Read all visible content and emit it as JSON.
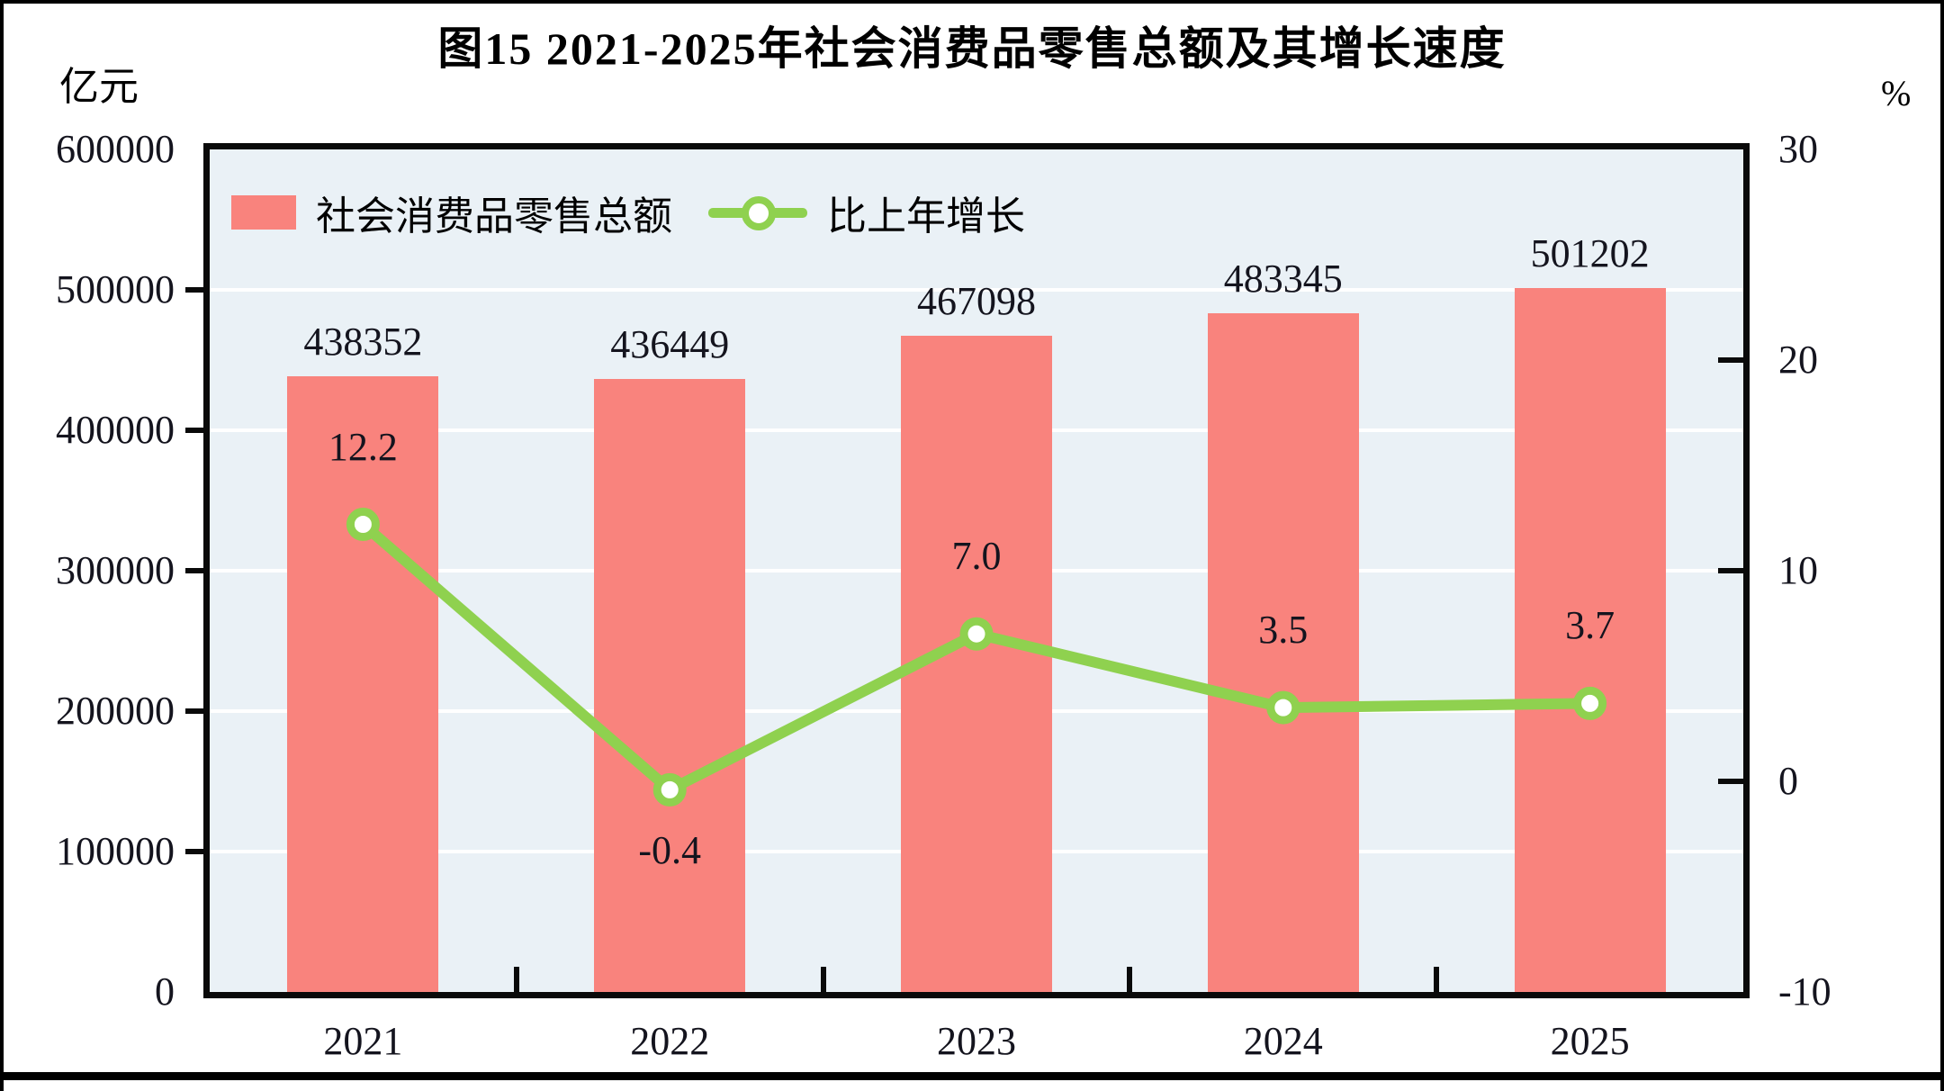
{
  "figure": {
    "title": "图15  2021-2025年社会消费品零售总额及其增长速度",
    "left_axis_unit": "亿元",
    "right_axis_unit": "%"
  },
  "legend": {
    "bar_label": "社会消费品零售总额",
    "line_label": "比上年增长"
  },
  "colors": {
    "bar": "#F9837D",
    "line": "#8FD14F",
    "marker_fill": "#FFFFFF",
    "plot_bg": "#EAF1F6",
    "gridline": "#FFFFFF",
    "axis": "#0A0A0A",
    "text": "#14141E"
  },
  "chart_data": {
    "type": "bar",
    "subtype": "bar+line combo, dual y-axis",
    "title": "图15  2021-2025年社会消费品零售总额及其增长速度",
    "categories": [
      "2021",
      "2022",
      "2023",
      "2024",
      "2025"
    ],
    "series": [
      {
        "name": "社会消费品零售总额",
        "type": "bar",
        "axis": "left",
        "unit": "亿元",
        "values": [
          438352,
          436449,
          467098,
          483345,
          501202
        ],
        "labels": [
          "438352",
          "436449",
          "467098",
          "483345",
          "501202"
        ]
      },
      {
        "name": "比上年增长",
        "type": "line",
        "axis": "right",
        "unit": "%",
        "values": [
          12.2,
          -0.4,
          7.0,
          3.5,
          3.7
        ],
        "labels": [
          "12.2",
          "-0.4",
          "7.0",
          "3.5",
          "3.7"
        ],
        "label_positions": [
          "above",
          "below",
          "above",
          "above",
          "above"
        ]
      }
    ],
    "left_axis": {
      "label": "亿元",
      "min": 0,
      "max": 600000,
      "tick_step": 100000,
      "ticks": [
        "600000",
        "500000",
        "400000",
        "300000",
        "200000",
        "100000",
        "0"
      ]
    },
    "right_axis": {
      "label": "%",
      "min": -10,
      "max": 30,
      "tick_step": 10,
      "ticks": [
        "30",
        "20",
        "10",
        "0",
        "-10"
      ]
    },
    "grid": "horizontal white gridlines at each 100000 of left axis",
    "legend_position": "top-left inside plot area"
  }
}
